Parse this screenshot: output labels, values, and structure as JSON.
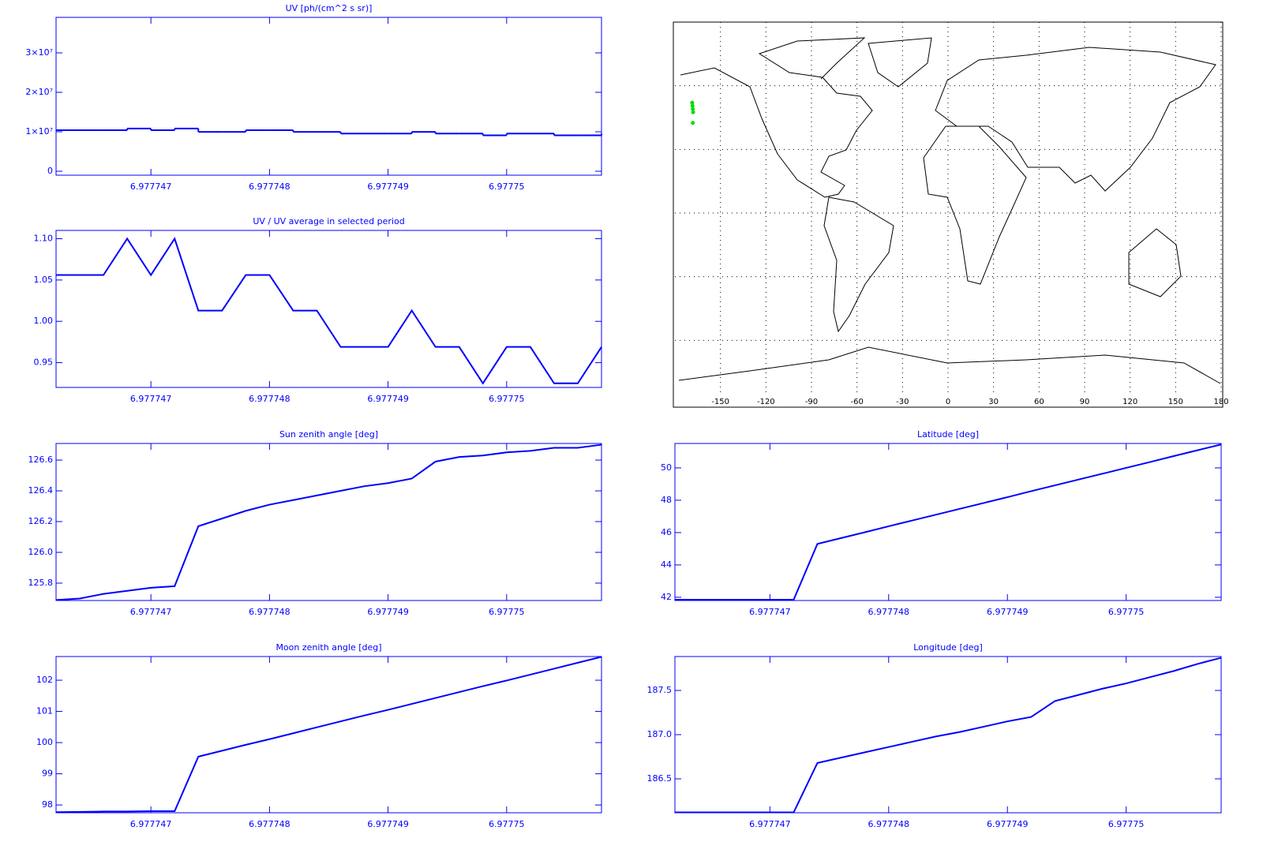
{
  "chart_data": [
    {
      "type": "line",
      "step": true,
      "title": "UV [ph/(cm^2 s sr)]",
      "color": "#0000ff",
      "x": [
        6.9777462,
        6.9777464,
        6.9777466,
        6.9777468,
        6.977747,
        6.9777472,
        6.9777474,
        6.9777476,
        6.9777478,
        6.977748,
        6.9777482,
        6.9777484,
        6.9777486,
        6.9777488,
        6.977749,
        6.9777492,
        6.9777494,
        6.9777496,
        6.9777498,
        6.97775,
        6.9777502,
        6.9777504,
        6.9777506,
        6.9777508
      ],
      "series": [
        {
          "name": "UV",
          "color": "#0000ff",
          "values": [
            10400000,
            10400000,
            10400000,
            10830000,
            10400000,
            10830000,
            9980000,
            9980000,
            10400000,
            10400000,
            9980000,
            9980000,
            9540000,
            9540000,
            9540000,
            9980000,
            9540000,
            9540000,
            9110000,
            9540000,
            9540000,
            9110000,
            9110000,
            9540000
          ]
        }
      ],
      "xlim": [
        6.9777462,
        6.9777508
      ],
      "xticks": [
        6.977747,
        6.977748,
        6.977749,
        6.97775
      ],
      "ylim": [
        -1000000,
        39000000
      ],
      "yticks": [
        0,
        {
          "value": 10000000,
          "label": "1×10⁷"
        },
        {
          "value": 20000000,
          "label": "2×10⁷"
        },
        {
          "value": 30000000,
          "label": "3×10⁷"
        }
      ]
    },
    {
      "type": "line",
      "title": "UV / UV average in selected period",
      "color": "#0000ff",
      "x": [
        6.9777462,
        6.9777464,
        6.9777466,
        6.9777468,
        6.977747,
        6.9777472,
        6.9777474,
        6.9777476,
        6.9777478,
        6.977748,
        6.9777482,
        6.9777484,
        6.9777486,
        6.9777488,
        6.977749,
        6.9777492,
        6.9777494,
        6.9777496,
        6.9777498,
        6.97775,
        6.9777502,
        6.9777504,
        6.9777506,
        6.9777508
      ],
      "series": [
        {
          "name": "ratio",
          "color": "#0000ff",
          "values": [
            1.056,
            1.056,
            1.056,
            1.1,
            1.056,
            1.1,
            1.013,
            1.013,
            1.056,
            1.056,
            1.013,
            1.013,
            0.969,
            0.969,
            0.969,
            1.013,
            0.969,
            0.969,
            0.925,
            0.969,
            0.969,
            0.925,
            0.925,
            0.969
          ]
        }
      ],
      "xlim": [
        6.9777462,
        6.9777508
      ],
      "xticks": [
        6.977747,
        6.977748,
        6.977749,
        6.97775
      ],
      "ylim": [
        0.92,
        1.11
      ],
      "yticks": [
        0.95,
        {
          "value": 1.0,
          "label": "1.00"
        },
        1.05,
        {
          "value": 1.1,
          "label": "1.10"
        }
      ]
    },
    {
      "type": "map",
      "color": "#00dd00",
      "xlim": [
        -180,
        180
      ],
      "ylim": [
        -90,
        90
      ],
      "xticks": [
        -150,
        -120,
        -90,
        -60,
        -30,
        0,
        30,
        60,
        90,
        120,
        150,
        180
      ],
      "ygrid": [
        -60,
        -30,
        0,
        30,
        60
      ],
      "series": [
        {
          "name": "track",
          "color": "#00dd00",
          "x": [
            -168.6,
            -168.4,
            -168.2,
            -168.0,
            -168.2
          ],
          "values": [
            52,
            50.5,
            49,
            47.5,
            42.5
          ]
        }
      ]
    },
    {
      "type": "line",
      "title": "Sun zenith angle [deg]",
      "color": "#0000ff",
      "x": [
        6.9777462,
        6.9777464,
        6.9777466,
        6.9777468,
        6.977747,
        6.9777472,
        6.9777474,
        6.9777476,
        6.9777478,
        6.977748,
        6.9777482,
        6.9777484,
        6.9777486,
        6.9777488,
        6.977749,
        6.9777492,
        6.9777494,
        6.9777496,
        6.9777498,
        6.97775,
        6.9777502,
        6.9777504,
        6.9777506,
        6.9777508
      ],
      "series": [
        {
          "name": "sun",
          "color": "#0000ff",
          "values": [
            125.69,
            125.7,
            125.73,
            125.75,
            125.77,
            125.78,
            126.17,
            126.22,
            126.27,
            126.31,
            126.34,
            126.37,
            126.4,
            126.43,
            126.45,
            126.48,
            126.59,
            126.62,
            126.63,
            126.65,
            126.66,
            126.68,
            126.68,
            126.7
          ]
        }
      ],
      "xlim": [
        6.9777462,
        6.9777508
      ],
      "xticks": [
        6.977747,
        6.977748,
        6.977749,
        6.97775
      ],
      "ylim": [
        125.687,
        126.708
      ],
      "yticks": [
        125.8,
        {
          "value": 126.0,
          "label": "126.0"
        },
        126.2,
        126.4,
        126.6
      ]
    },
    {
      "type": "line",
      "title": "Latitude [deg]",
      "color": "#0000ff",
      "x": [
        6.9777462,
        6.9777464,
        6.9777466,
        6.9777468,
        6.977747,
        6.9777472,
        6.9777474,
        6.9777476,
        6.9777478,
        6.977748,
        6.9777482,
        6.9777484,
        6.9777486,
        6.9777488,
        6.977749,
        6.9777492,
        6.9777494,
        6.9777496,
        6.9777498,
        6.97775,
        6.9777502,
        6.9777504,
        6.9777506,
        6.9777508
      ],
      "series": [
        {
          "name": "latitude",
          "color": "#0000ff",
          "values": [
            41.85,
            41.85,
            41.85,
            41.85,
            41.85,
            41.85,
            45.3,
            45.66,
            46.02,
            46.39,
            46.75,
            47.11,
            47.47,
            47.83,
            48.19,
            48.56,
            48.92,
            49.28,
            49.64,
            50.0,
            50.36,
            50.73,
            51.09,
            51.45
          ]
        }
      ],
      "xlim": [
        6.9777462,
        6.9777508
      ],
      "xticks": [
        6.977747,
        6.977748,
        6.977749,
        6.97775
      ],
      "ylim": [
        41.8,
        51.51
      ],
      "yticks": [
        42,
        44,
        46,
        48,
        50
      ]
    },
    {
      "type": "line",
      "title": "Moon zenith angle [deg]",
      "color": "#0000ff",
      "x": [
        6.9777462,
        6.9777464,
        6.9777466,
        6.9777468,
        6.977747,
        6.9777472,
        6.9777474,
        6.9777476,
        6.9777478,
        6.977748,
        6.9777482,
        6.9777484,
        6.9777486,
        6.9777488,
        6.977749,
        6.9777492,
        6.9777494,
        6.9777496,
        6.9777498,
        6.97775,
        6.9777502,
        6.9777504,
        6.9777506,
        6.9777508
      ],
      "series": [
        {
          "name": "moon",
          "color": "#0000ff",
          "values": [
            97.77,
            97.78,
            97.79,
            97.79,
            97.8,
            97.8,
            99.55,
            99.74,
            99.93,
            100.11,
            100.3,
            100.49,
            100.68,
            100.87,
            101.05,
            101.24,
            101.43,
            101.62,
            101.81,
            101.99,
            102.18,
            102.37,
            102.56,
            102.75
          ]
        }
      ],
      "xlim": [
        6.9777462,
        6.9777508
      ],
      "xticks": [
        6.977747,
        6.977748,
        6.977749,
        6.97775
      ],
      "ylim": [
        97.75,
        102.76
      ],
      "yticks": [
        98,
        99,
        100,
        101,
        102
      ]
    },
    {
      "type": "line",
      "title": "Longitude [deg]",
      "color": "#0000ff",
      "x": [
        6.9777462,
        6.9777464,
        6.9777466,
        6.9777468,
        6.977747,
        6.9777472,
        6.9777474,
        6.9777476,
        6.9777478,
        6.977748,
        6.9777482,
        6.9777484,
        6.9777486,
        6.9777488,
        6.977749,
        6.9777492,
        6.9777494,
        6.9777496,
        6.9777498,
        6.97775,
        6.9777502,
        6.9777504,
        6.9777506,
        6.9777508
      ],
      "series": [
        {
          "name": "longitude",
          "color": "#0000ff",
          "values": [
            186.12,
            186.12,
            186.12,
            186.12,
            186.12,
            186.12,
            186.68,
            186.74,
            186.8,
            186.86,
            186.92,
            186.98,
            187.03,
            187.09,
            187.15,
            187.2,
            187.38,
            187.45,
            187.52,
            187.58,
            187.65,
            187.72,
            187.8,
            187.87
          ]
        }
      ],
      "xlim": [
        6.9777462,
        6.9777508
      ],
      "xticks": [
        6.977747,
        6.977748,
        6.977749,
        6.97775
      ],
      "ylim": [
        186.116,
        187.884
      ],
      "yticks": [
        186.5,
        {
          "value": 187.0,
          "label": "187.0"
        },
        187.5
      ]
    }
  ]
}
